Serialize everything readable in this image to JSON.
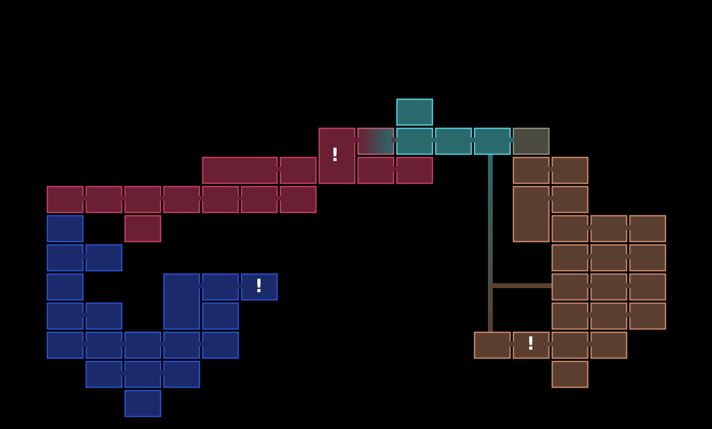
{
  "markers": [
    {
      "label": "!"
    },
    {
      "label": "!"
    },
    {
      "label": "!"
    }
  ]
}
